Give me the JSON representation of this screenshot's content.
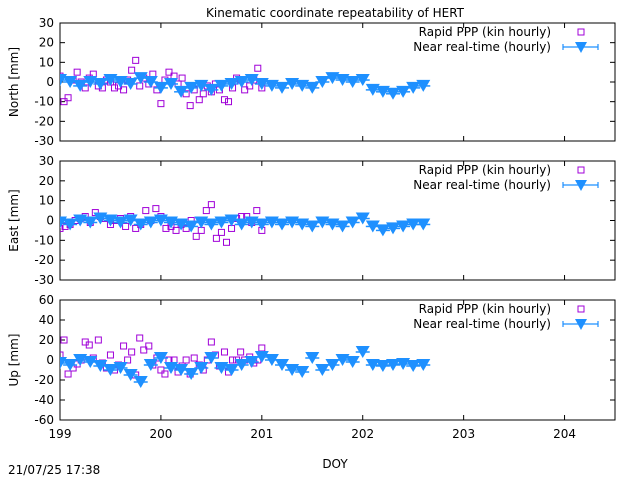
{
  "chart_data": {
    "type": "scatter",
    "title": "Kinematic coordinate repeatability of HERT",
    "xlabel": "DOY",
    "xlim": [
      199,
      204.5
    ],
    "xticks": [
      "199",
      "200",
      "201",
      "202",
      "203",
      "204"
    ],
    "footer": "21/07/25 17:38",
    "series_style": {
      "Rapid PPP (kin hourly)": {
        "color": "#a000d8",
        "marker": "open-square"
      },
      "Near real-time (hourly)": {
        "color": "#1e90ff",
        "marker": "filled-triangle-down-with-errorbar"
      }
    },
    "panels": [
      {
        "ylabel": "North [mm]",
        "ylim": [
          -30,
          30
        ],
        "yticks": [
          "30",
          "20",
          "10",
          "0",
          "-10",
          "-20",
          "-30"
        ],
        "legend": [
          "Rapid PPP (kin hourly)",
          "Near real-time (hourly)"
        ],
        "series": [
          {
            "name": "Rapid PPP (kin hourly)",
            "x": [
              199.0,
              199.04,
              199.08,
              199.13,
              199.17,
              199.21,
              199.25,
              199.29,
              199.33,
              199.38,
              199.42,
              199.46,
              199.5,
              199.54,
              199.58,
              199.63,
              199.67,
              199.71,
              199.75,
              199.79,
              199.83,
              199.88,
              199.92,
              199.96,
              200.0,
              200.04,
              200.08,
              200.13,
              200.17,
              200.21,
              200.25,
              200.29,
              200.33,
              200.38,
              200.42,
              200.46,
              200.5,
              200.54,
              200.58,
              200.63,
              200.67,
              200.71,
              200.75,
              200.79,
              200.83,
              200.88,
              200.92,
              200.96,
              201.0
            ],
            "y": [
              3,
              -10,
              -8,
              1,
              5,
              0,
              -3,
              2,
              4,
              -2,
              -3,
              1,
              0,
              -3,
              -2,
              -4,
              1,
              6,
              11,
              -2,
              2,
              -1,
              4,
              -4,
              -11,
              1,
              5,
              3,
              -1,
              2,
              -6,
              -12,
              -4,
              -9,
              -6,
              -2,
              -5,
              -1,
              -4,
              -9,
              -10,
              -3,
              2,
              1,
              -4,
              -2,
              1,
              7,
              -3
            ]
          },
          {
            "name": "Near real-time (hourly)",
            "x": [
              199.0,
              199.1,
              199.2,
              199.3,
              199.4,
              199.5,
              199.6,
              199.7,
              199.8,
              199.9,
              200.0,
              200.1,
              200.2,
              200.3,
              200.4,
              200.5,
              200.6,
              200.7,
              200.8,
              200.9,
              201.0,
              201.1,
              201.2,
              201.3,
              201.4,
              201.5,
              201.6,
              201.7,
              201.8,
              201.9,
              202.0,
              202.1,
              202.2,
              202.3,
              202.4,
              202.5,
              202.6
            ],
            "y": [
              1,
              0,
              -2,
              0,
              -1,
              1,
              0,
              -1,
              2,
              0,
              -3,
              -1,
              -5,
              -3,
              -2,
              -4,
              -2,
              -1,
              0,
              1,
              -1,
              -2,
              -3,
              -1,
              -2,
              -3,
              0,
              2,
              1,
              0,
              1,
              -4,
              -5,
              -6,
              -5,
              -3,
              -2
            ]
          }
        ]
      },
      {
        "ylabel": "East [mm]",
        "ylim": [
          -30,
          30
        ],
        "yticks": [
          "30",
          "20",
          "10",
          "0",
          "-10",
          "-20",
          "-30"
        ],
        "legend": [
          "Rapid PPP (kin hourly)",
          "Near real-time (hourly)"
        ],
        "series": [
          {
            "name": "Rapid PPP (kin hourly)",
            "x": [
              199.0,
              199.05,
              199.1,
              199.15,
              199.2,
              199.25,
              199.3,
              199.35,
              199.4,
              199.45,
              199.5,
              199.55,
              199.6,
              199.65,
              199.7,
              199.75,
              199.8,
              199.85,
              199.9,
              199.95,
              200.0,
              200.05,
              200.1,
              200.15,
              200.2,
              200.25,
              200.3,
              200.35,
              200.4,
              200.45,
              200.5,
              200.55,
              200.6,
              200.65,
              200.7,
              200.75,
              200.8,
              200.85,
              200.9,
              200.95,
              201.0
            ],
            "y": [
              -4,
              -3,
              -2,
              0,
              1,
              2,
              -1,
              4,
              2,
              1,
              -2,
              0,
              1,
              -3,
              2,
              -4,
              -2,
              5,
              0,
              6,
              2,
              -4,
              -3,
              -5,
              -2,
              -4,
              0,
              -8,
              -5,
              5,
              8,
              -9,
              -6,
              -11,
              -4,
              1,
              2,
              2,
              -1,
              5,
              -5
            ]
          },
          {
            "name": "Near real-time (hourly)",
            "x": [
              199.0,
              199.1,
              199.2,
              199.3,
              199.4,
              199.5,
              199.6,
              199.7,
              199.8,
              199.9,
              200.0,
              200.1,
              200.2,
              200.3,
              200.4,
              200.5,
              200.6,
              200.7,
              200.8,
              200.9,
              201.0,
              201.1,
              201.2,
              201.3,
              201.4,
              201.5,
              201.6,
              201.7,
              201.8,
              201.9,
              202.0,
              202.1,
              202.2,
              202.3,
              202.4,
              202.5,
              202.6
            ],
            "y": [
              -1,
              -2,
              0,
              -1,
              1,
              0,
              -1,
              0,
              -2,
              -1,
              0,
              -1,
              -2,
              -3,
              -1,
              -2,
              -1,
              0,
              -2,
              -1,
              -2,
              -1,
              -2,
              -1,
              -2,
              -3,
              -1,
              -2,
              -3,
              -1,
              1,
              -3,
              -5,
              -4,
              -3,
              -2,
              -2
            ]
          }
        ]
      },
      {
        "ylabel": "Up [mm]",
        "ylim": [
          -60,
          60
        ],
        "yticks": [
          "60",
          "40",
          "20",
          "0",
          "-20",
          "-40",
          "-60"
        ],
        "legend": [
          "Rapid PPP (kin hourly)",
          "Near real-time (hourly)"
        ],
        "series": [
          {
            "name": "Rapid PPP (kin hourly)",
            "x": [
              199.0,
              199.04,
              199.08,
              199.13,
              199.17,
              199.21,
              199.25,
              199.29,
              199.33,
              199.38,
              199.42,
              199.46,
              199.5,
              199.54,
              199.58,
              199.63,
              199.67,
              199.71,
              199.75,
              199.79,
              199.83,
              199.88,
              199.92,
              199.96,
              200.0,
              200.04,
              200.08,
              200.13,
              200.17,
              200.21,
              200.25,
              200.29,
              200.33,
              200.38,
              200.42,
              200.46,
              200.5,
              200.54,
              200.58,
              200.63,
              200.67,
              200.71,
              200.75,
              200.79,
              200.83,
              200.88,
              200.92,
              200.96,
              201.0
            ],
            "y": [
              5,
              20,
              -14,
              -8,
              -4,
              0,
              18,
              15,
              2,
              20,
              -3,
              -8,
              5,
              -10,
              -5,
              14,
              0,
              8,
              -15,
              22,
              10,
              14,
              -5,
              2,
              -10,
              -14,
              0,
              0,
              -12,
              -6,
              0,
              -14,
              2,
              -5,
              -10,
              0,
              18,
              5,
              -6,
              8,
              -12,
              0,
              0,
              8,
              0,
              3,
              -3,
              0,
              12
            ]
          },
          {
            "name": "Near real-time (hourly)",
            "x": [
              199.0,
              199.1,
              199.2,
              199.3,
              199.4,
              199.5,
              199.6,
              199.7,
              199.8,
              199.9,
              200.0,
              200.1,
              200.2,
              200.3,
              200.4,
              200.5,
              200.6,
              200.7,
              200.8,
              200.9,
              201.0,
              201.1,
              201.2,
              201.3,
              201.4,
              201.5,
              201.6,
              201.7,
              201.8,
              201.9,
              202.0,
              202.1,
              202.2,
              202.3,
              202.4,
              202.5,
              202.6
            ],
            "y": [
              -3,
              -5,
              0,
              -2,
              -6,
              -10,
              -8,
              -15,
              -22,
              -5,
              2,
              -8,
              -10,
              -14,
              -8,
              2,
              -8,
              -10,
              -5,
              -2,
              3,
              0,
              -5,
              -10,
              -12,
              2,
              -10,
              -5,
              0,
              -2,
              8,
              -5,
              -6,
              -5,
              -4,
              -6,
              -5
            ]
          }
        ]
      }
    ]
  }
}
